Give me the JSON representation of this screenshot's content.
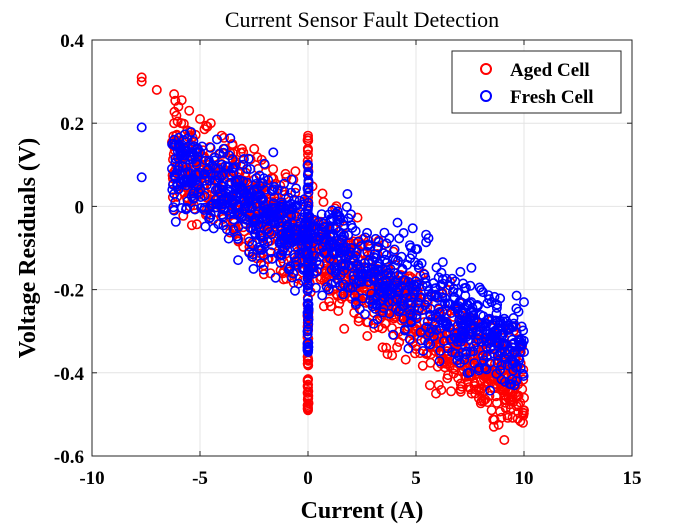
{
  "chart_data": {
    "type": "scatter",
    "title": "Current Sensor Fault Detection",
    "xlabel": "Current (A)",
    "ylabel": "Voltage Residuals (V)",
    "xlim": [
      -10,
      15
    ],
    "ylim": [
      -0.6,
      0.4
    ],
    "xticks": [
      -10,
      -5,
      0,
      5,
      10,
      15
    ],
    "xtick_labels": [
      "-10",
      "-5",
      "0",
      "5",
      "10",
      "15"
    ],
    "yticks": [
      -0.6,
      -0.4,
      -0.2,
      0,
      0.2,
      0.4
    ],
    "ytick_labels": [
      "-0.6",
      "-0.4",
      "-0.2",
      "0",
      "0.2",
      "0.4"
    ],
    "grid": true,
    "legend_position": "top-right",
    "marker": "open-circle",
    "series": [
      {
        "name": "Aged Cell",
        "color": "#ff0000",
        "trend": {
          "slope": -0.0345,
          "intercept": -0.095,
          "residual_spread": 0.06
        },
        "points": [
          {
            "x": -7.7,
            "y": 0.31
          },
          {
            "x": -7.7,
            "y": 0.3
          },
          {
            "x": -7.0,
            "y": 0.28
          },
          {
            "x": -6.2,
            "y": 0.27
          },
          {
            "x": -6.2,
            "y": 0.2
          },
          {
            "x": -6.0,
            "y": 0.24
          },
          {
            "x": -5.5,
            "y": 0.23
          },
          {
            "x": -5.0,
            "y": 0.21
          },
          {
            "x": -4.5,
            "y": 0.2
          },
          {
            "x": -4.0,
            "y": 0.17
          },
          {
            "x": -3.5,
            "y": 0.15
          },
          {
            "x": -3.0,
            "y": 0.13
          },
          {
            "x": -2.0,
            "y": 0.1
          },
          {
            "x": -1.0,
            "y": 0.07
          },
          {
            "x": -4.5,
            "y": 0.0
          },
          {
            "x": -3.0,
            "y": -0.05
          },
          {
            "x": 0.0,
            "y": 0.17
          },
          {
            "x": 0.0,
            "y": -0.49
          },
          {
            "x": 2.0,
            "y": -0.16
          },
          {
            "x": 4.0,
            "y": -0.26
          },
          {
            "x": 5.0,
            "y": -0.3
          },
          {
            "x": 6.0,
            "y": -0.34
          },
          {
            "x": 7.0,
            "y": -0.38
          },
          {
            "x": 8.0,
            "y": -0.42
          },
          {
            "x": 8.5,
            "y": -0.49
          },
          {
            "x": 9.0,
            "y": -0.44
          },
          {
            "x": 9.5,
            "y": -0.47
          },
          {
            "x": 10.0,
            "y": -0.46
          },
          {
            "x": 10.0,
            "y": -0.49
          },
          {
            "x": 5.0,
            "y": -0.22
          }
        ]
      },
      {
        "name": "Fresh Cell",
        "color": "#0000ff",
        "trend": {
          "slope": -0.0275,
          "intercept": -0.075,
          "residual_spread": 0.055
        },
        "points": [
          {
            "x": -7.7,
            "y": 0.19
          },
          {
            "x": -7.7,
            "y": 0.07
          },
          {
            "x": -6.2,
            "y": 0.16
          },
          {
            "x": -6.2,
            "y": 0.03
          },
          {
            "x": -5.5,
            "y": 0.12
          },
          {
            "x": -5.0,
            "y": 0.13
          },
          {
            "x": -4.0,
            "y": 0.1
          },
          {
            "x": -3.0,
            "y": 0.06
          },
          {
            "x": -2.0,
            "y": 0.04
          },
          {
            "x": -1.0,
            "y": 0.0
          },
          {
            "x": -4.5,
            "y": -0.02
          },
          {
            "x": 0.0,
            "y": 0.1
          },
          {
            "x": 0.0,
            "y": -0.35
          },
          {
            "x": 1.0,
            "y": -0.05
          },
          {
            "x": 2.0,
            "y": -0.1
          },
          {
            "x": 3.0,
            "y": -0.13
          },
          {
            "x": 4.0,
            "y": -0.16
          },
          {
            "x": 5.0,
            "y": -0.18
          },
          {
            "x": 6.0,
            "y": -0.22
          },
          {
            "x": 7.0,
            "y": -0.26
          },
          {
            "x": 8.0,
            "y": -0.29
          },
          {
            "x": 8.5,
            "y": -0.23
          },
          {
            "x": 9.0,
            "y": -0.31
          },
          {
            "x": 9.5,
            "y": -0.33
          },
          {
            "x": 10.0,
            "y": -0.23
          },
          {
            "x": 10.0,
            "y": -0.35
          }
        ]
      }
    ]
  }
}
